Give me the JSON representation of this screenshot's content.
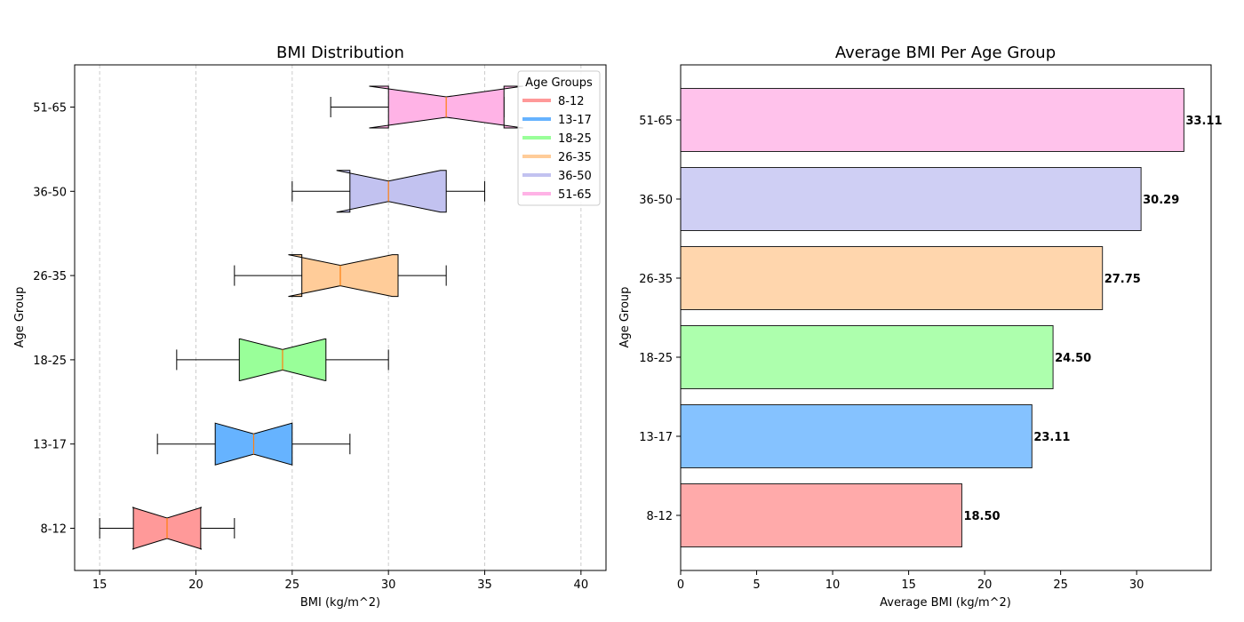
{
  "chart_data": [
    {
      "type": "boxplot",
      "orientation": "horizontal",
      "notched": true,
      "title": "BMI Distribution",
      "xlabel": "BMI (kg/m^2)",
      "ylabel": "Age Group",
      "xlim": [
        13.7,
        41.3
      ],
      "xticks": [
        15,
        20,
        25,
        30,
        35,
        40
      ],
      "grid": "x",
      "legend": {
        "title": "Age Groups",
        "placement": "top-right",
        "entries": [
          "8-12",
          "13-17",
          "18-25",
          "26-35",
          "36-50",
          "51-65"
        ]
      },
      "categories": [
        "8-12",
        "13-17",
        "18-25",
        "26-35",
        "36-50",
        "51-65"
      ],
      "boxes": [
        {
          "min": 15,
          "q1": 16.75,
          "median": 18.5,
          "q3": 20.25,
          "max": 22,
          "notch_low": 16.7,
          "notch_high": 20.3,
          "color": "#ff9999"
        },
        {
          "min": 18,
          "q1": 21,
          "median": 23,
          "q3": 25,
          "max": 28,
          "notch_low": 21.0,
          "notch_high": 25.0,
          "color": "#66b3ff"
        },
        {
          "min": 19,
          "q1": 22.25,
          "median": 24.5,
          "q3": 26.75,
          "max": 30,
          "notch_low": 22.3,
          "notch_high": 26.7,
          "color": "#99ff99"
        },
        {
          "min": 22,
          "q1": 25.5,
          "median": 27.5,
          "q3": 30.5,
          "max": 33,
          "notch_low": 24.8,
          "notch_high": 30.2,
          "color": "#ffcc99"
        },
        {
          "min": 25,
          "q1": 28,
          "median": 30,
          "q3": 33,
          "max": 35,
          "notch_low": 27.3,
          "notch_high": 32.7,
          "color": "#c2c2f0"
        },
        {
          "min": 27,
          "q1": 30,
          "median": 33,
          "q3": 36,
          "max": 36,
          "notch_low": 29.0,
          "notch_high": 37.0,
          "color": "#ffb3e6"
        }
      ]
    },
    {
      "type": "bar",
      "orientation": "horizontal",
      "title": "Average BMI Per Age Group",
      "xlabel": "Average BMI (kg/m^2)",
      "ylabel": "Age Group",
      "xlim": [
        0,
        34.9
      ],
      "xticks": [
        0,
        5,
        10,
        15,
        20,
        25,
        30
      ],
      "categories": [
        "8-12",
        "13-17",
        "18-25",
        "26-35",
        "36-50",
        "51-65"
      ],
      "values": [
        18.5,
        23.11,
        24.5,
        27.75,
        30.29,
        33.11
      ],
      "value_labels": [
        "18.50",
        "23.11",
        "24.50",
        "27.75",
        "30.29",
        "33.11"
      ],
      "colors": [
        "#ffaaaa",
        "#85c2ff",
        "#adffad",
        "#ffd6ad",
        "#cfcff4",
        "#ffc2eb"
      ]
    }
  ]
}
